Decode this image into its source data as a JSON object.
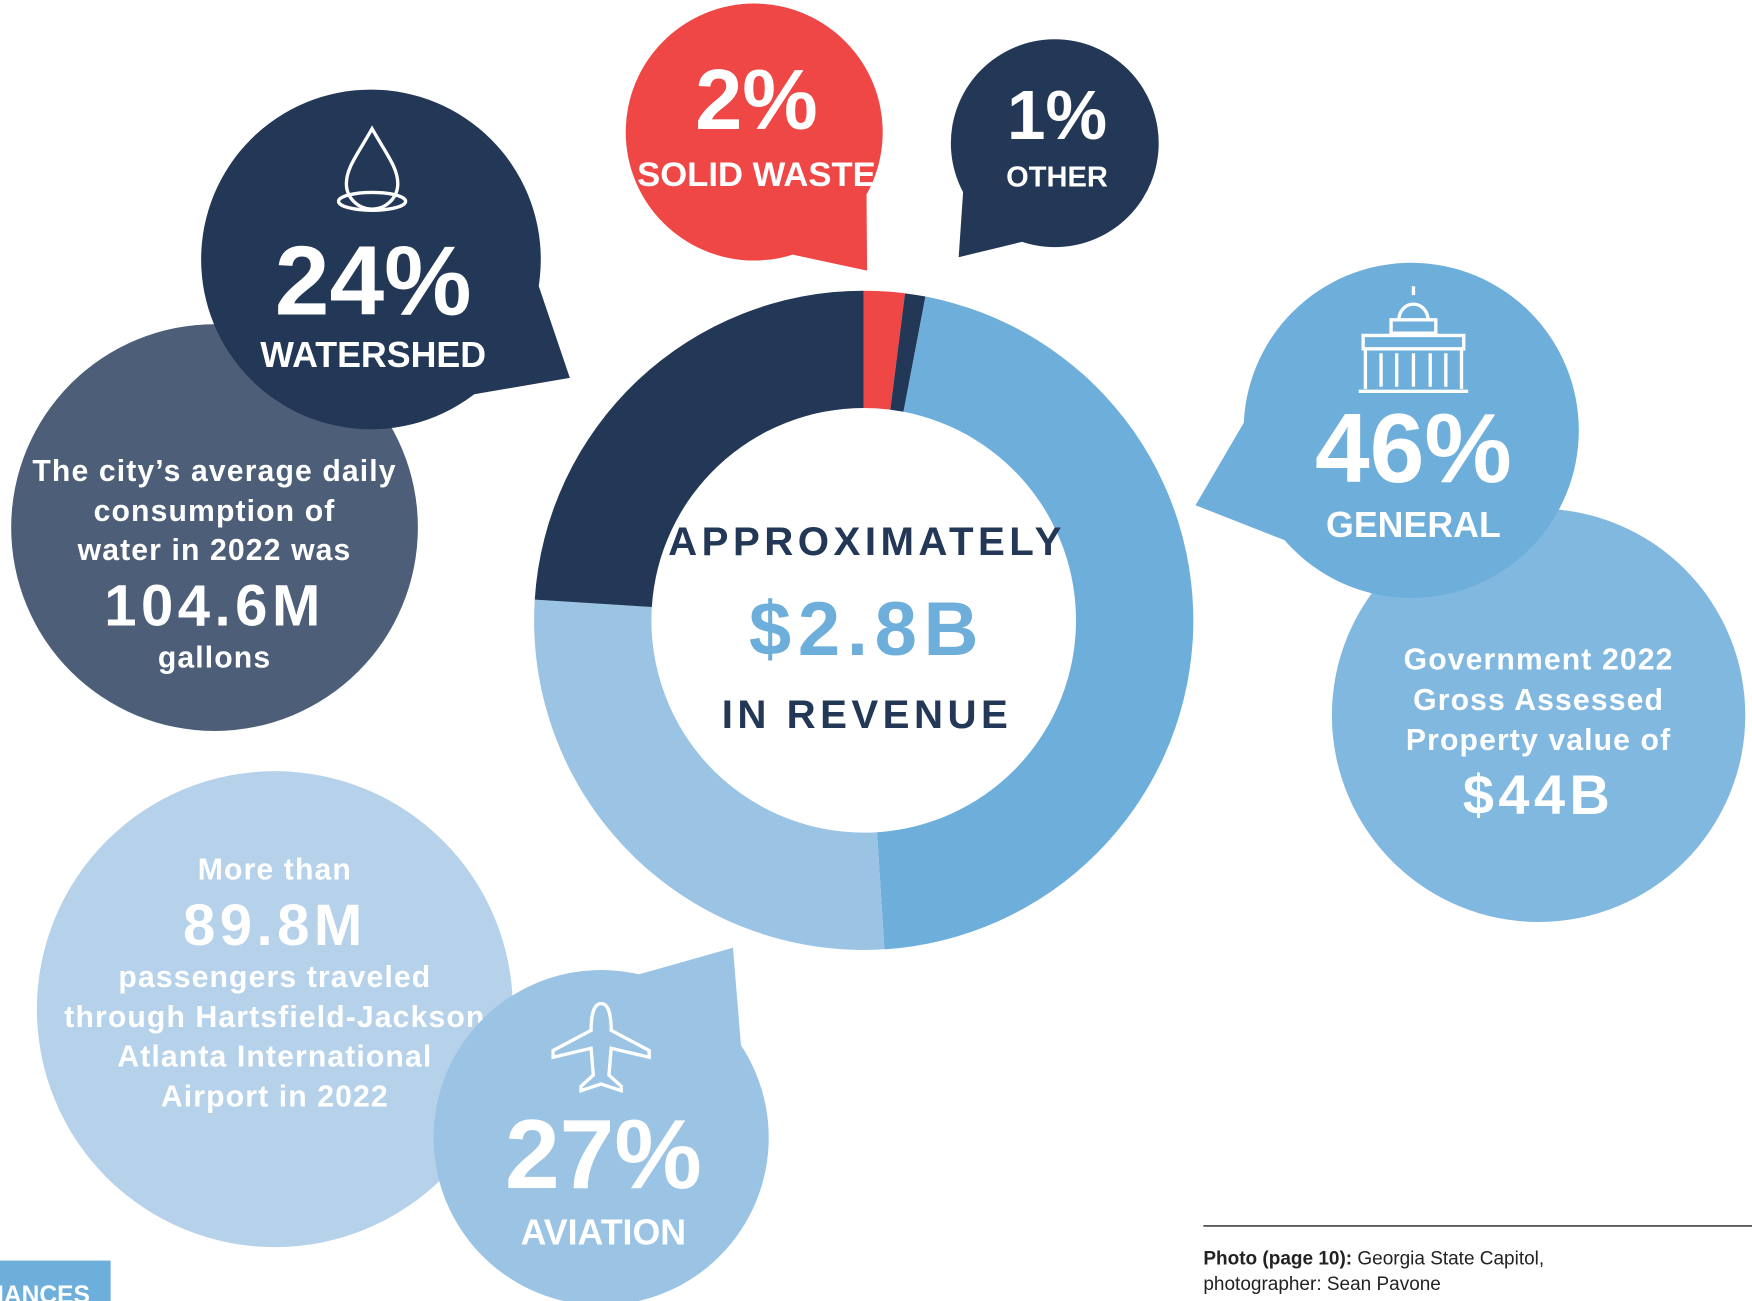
{
  "chart_data": {
    "type": "pie",
    "categories": [
      "SOLID WASTE",
      "OTHER",
      "GENERAL",
      "AVIATION",
      "WATERSHED"
    ],
    "values": [
      2,
      1,
      46,
      27,
      24
    ],
    "value_labels": [
      "2%",
      "1%",
      "46%",
      "27%",
      "24%"
    ],
    "colors": [
      "#ef4646",
      "#233756",
      "#6daedb",
      "#9ac3e4",
      "#233756"
    ],
    "center_text": [
      "APPROXIMATELY",
      "$2.8B",
      "IN REVENUE"
    ],
    "annotations": [
      {
        "lines": [
          "The city’s average daily",
          "consumption of",
          "water in 2022 was",
          "104.6M",
          "gallons"
        ]
      },
      {
        "lines": [
          "Government 2022",
          "Gross Assessed",
          "Property value of",
          "$44B"
        ]
      },
      {
        "lines": [
          "More than",
          "89.8M",
          "passengers traveled",
          "through Hartsfield-Jackson",
          "Atlanta International",
          "Airport in 2022"
        ]
      }
    ]
  },
  "footer": {
    "label": "Photo (page 10):",
    "text": "Georgia State Capitol,",
    "text2": "photographer: Sean Pavone"
  },
  "section_tab": "NANCES"
}
